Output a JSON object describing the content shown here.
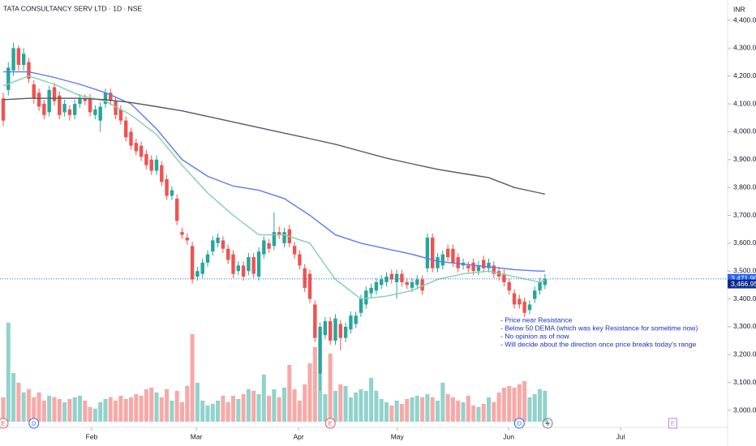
{
  "chart_data": {
    "type": "candlestick",
    "title": "TATA CONSULTANCY SERV LTD · 1D · NSE",
    "currency": "INR",
    "up_color": "#26a69a",
    "down_color": "#ef5350",
    "open": [
      4120,
      4150,
      4220,
      4300,
      4240,
      4250,
      4170,
      4140,
      4100,
      4070,
      4160,
      4130,
      4070,
      4080,
      4060,
      4100,
      4120,
      4120,
      4060,
      4040,
      4100,
      4140,
      4110,
      4080,
      4040,
      4000,
      3960,
      3950,
      3920,
      3900,
      3860,
      3880,
      3830,
      3770,
      3760,
      3640,
      3620,
      3590,
      3480,
      3490,
      3530,
      3570,
      3600,
      3610,
      3580,
      3560,
      3500,
      3520,
      3500,
      3550,
      3480,
      3560,
      3600,
      3590,
      3640,
      3600,
      3650,
      3590,
      3560,
      3510,
      3490,
      3380,
      3130,
      3270,
      3320,
      3250,
      3310,
      3260,
      3290,
      3310,
      3350,
      3380,
      3420,
      3430,
      3450,
      3460,
      3490,
      3460,
      3490,
      3460,
      3440,
      3450,
      3470,
      3510,
      3620,
      3510,
      3520,
      3580,
      3580,
      3550,
      3520,
      3520,
      3530,
      3500,
      3540,
      3510,
      3520,
      3500,
      3490,
      3460,
      3420,
      3400,
      3390,
      3360,
      3400,
      3430,
      3450
    ],
    "high": [
      4140,
      4250,
      4320,
      4310,
      4300,
      4265,
      4185,
      4155,
      4115,
      4165,
      4175,
      4145,
      4115,
      4095,
      4115,
      4135,
      4135,
      4135,
      4095,
      4105,
      4155,
      4155,
      4125,
      4095,
      4055,
      4015,
      3975,
      3965,
      3935,
      3915,
      3915,
      3895,
      3845,
      3805,
      3775,
      3655,
      3635,
      3605,
      3515,
      3545,
      3575,
      3625,
      3635,
      3625,
      3595,
      3575,
      3535,
      3535,
      3565,
      3565,
      3585,
      3625,
      3615,
      3710,
      3660,
      3655,
      3665,
      3605,
      3575,
      3525,
      3505,
      3395,
      3315,
      3335,
      3335,
      3345,
      3325,
      3315,
      3355,
      3355,
      3415,
      3445,
      3455,
      3475,
      3485,
      3495,
      3505,
      3505,
      3505,
      3475,
      3475,
      3485,
      3485,
      3635,
      3635,
      3565,
      3575,
      3595,
      3595,
      3565,
      3545,
      3535,
      3545,
      3535,
      3555,
      3545,
      3535,
      3515,
      3505,
      3475,
      3435,
      3415,
      3405,
      3395,
      3445,
      3475,
      3490
    ],
    "low": [
      4020,
      4130,
      4200,
      4220,
      4220,
      4175,
      4100,
      4075,
      4045,
      4055,
      4095,
      4045,
      4055,
      4040,
      4045,
      4085,
      4095,
      4055,
      4045,
      4000,
      4085,
      4095,
      4045,
      4025,
      3965,
      3935,
      3915,
      3895,
      3865,
      3845,
      3845,
      3805,
      3755,
      3755,
      3665,
      3615,
      3595,
      3455,
      3465,
      3475,
      3515,
      3555,
      3585,
      3565,
      3525,
      3475,
      3485,
      3465,
      3485,
      3475,
      3465,
      3545,
      3565,
      3575,
      3615,
      3585,
      3585,
      3545,
      3505,
      3425,
      3385,
      3245,
      3070,
      3255,
      3235,
      3235,
      3215,
      3245,
      3275,
      3295,
      3335,
      3365,
      3405,
      3415,
      3435,
      3445,
      3455,
      3400,
      3445,
      3435,
      3425,
      3435,
      3415,
      3495,
      3495,
      3495,
      3505,
      3535,
      3515,
      3495,
      3505,
      3495,
      3485,
      3485,
      3495,
      3495,
      3475,
      3465,
      3445,
      3415,
      3365,
      3365,
      3335,
      3345,
      3385,
      3415,
      3435
    ],
    "close": [
      4040,
      4230,
      4300,
      4240,
      4280,
      4190,
      4120,
      4090,
      4060,
      4150,
      4110,
      4060,
      4100,
      4060,
      4100,
      4120,
      4110,
      4070,
      4080,
      4090,
      4140,
      4110,
      4060,
      4040,
      3980,
      3950,
      3930,
      3910,
      3880,
      3860,
      3900,
      3820,
      3770,
      3790,
      3680,
      3630,
      3610,
      3470,
      3500,
      3530,
      3560,
      3610,
      3620,
      3580,
      3540,
      3490,
      3520,
      3480,
      3550,
      3490,
      3570,
      3610,
      3580,
      3640,
      3630,
      3640,
      3600,
      3560,
      3520,
      3440,
      3400,
      3260,
      3300,
      3320,
      3250,
      3330,
      3260,
      3300,
      3340,
      3340,
      3400,
      3430,
      3440,
      3460,
      3470,
      3480,
      3470,
      3490,
      3460,
      3450,
      3460,
      3470,
      3430,
      3620,
      3510,
      3550,
      3560,
      3550,
      3530,
      3510,
      3530,
      3510,
      3500,
      3520,
      3510,
      3530,
      3490,
      3480,
      3460,
      3430,
      3380,
      3380,
      3350,
      3380,
      3430,
      3460,
      3471.9
    ],
    "volume": [
      1.5,
      6.1,
      3.0,
      2.4,
      1.8,
      2.0,
      1.5,
      1.8,
      1.3,
      1.6,
      1.5,
      1.4,
      1.2,
      1.4,
      1.5,
      1.6,
      1.3,
      0.9,
      0.8,
      1.2,
      1.4,
      1.5,
      1.3,
      1.6,
      1.4,
      1.5,
      1.7,
      1.6,
      2.0,
      2.1,
      1.8,
      1.5,
      2.0,
      1.3,
      1.9,
      1.2,
      2.2,
      5.4,
      2.4,
      1.3,
      1.0,
      1.1,
      1.3,
      1.6,
      1.2,
      1.6,
      1.4,
      1.7,
      2.0,
      1.9,
      1.7,
      2.9,
      1.6,
      2.0,
      1.5,
      2.1,
      3.5,
      2.0,
      1.3,
      2.3,
      3.6,
      4.6,
      2.9,
      1.7,
      4.2,
      1.9,
      2.3,
      2.2,
      1.5,
      1.8,
      2.0,
      1.9,
      2.7,
      1.9,
      1.4,
      1.2,
      1.0,
      1.3,
      1.1,
      1.4,
      1.5,
      1.6,
      1.5,
      1.7,
      1.5,
      1.3,
      2.4,
      1.7,
      1.5,
      1.3,
      1.2,
      1.6,
      1.0,
      0.9,
      1.1,
      1.5,
      1.2,
      1.8,
      2.1,
      2.2,
      2.1,
      2.3,
      2.5,
      1.5,
      1.7,
      2.0,
      1.9
    ],
    "lines": [
      {
        "color": "#82cfad",
        "x": [
          0,
          5,
          10,
          15,
          20,
          25,
          30,
          35,
          40,
          45,
          50,
          55,
          60,
          65,
          70,
          75,
          80,
          85,
          90,
          95,
          100,
          105,
          106
        ],
        "values": [
          4165,
          4200,
          4170,
          4130,
          4110,
          4060,
          3990,
          3880,
          3780,
          3700,
          3630,
          3630,
          3600,
          3470,
          3400,
          3410,
          3430,
          3470,
          3490,
          3500,
          3480,
          3460,
          3466.95
        ]
      },
      {
        "color": "#5b7cf0",
        "x": [
          0,
          5,
          10,
          15,
          20,
          25,
          30,
          35,
          40,
          45,
          50,
          55,
          60,
          65,
          70,
          75,
          80,
          85,
          90,
          95,
          100,
          105,
          106
        ],
        "values": [
          4215,
          4215,
          4195,
          4170,
          4140,
          4100,
          4010,
          3900,
          3840,
          3805,
          3790,
          3760,
          3700,
          3630,
          3600,
          3580,
          3560,
          3535,
          3525,
          3515,
          3505,
          3500,
          3500
        ]
      },
      {
        "color": "#555a66",
        "x": [
          0,
          5,
          10,
          15,
          20,
          25,
          30,
          35,
          40,
          45,
          50,
          55,
          60,
          65,
          70,
          75,
          80,
          85,
          90,
          95,
          100,
          105,
          106
        ],
        "values": [
          4115,
          4120,
          4120,
          4120,
          4115,
          4105,
          4090,
          4075,
          4055,
          4035,
          4015,
          3995,
          3975,
          3955,
          3930,
          3905,
          3885,
          3865,
          3850,
          3835,
          3800,
          3780,
          3776
        ]
      }
    ],
    "xlim": [
      -0.63,
      140.63
    ],
    "xticks": [
      {
        "value": 17.3,
        "label": "Feb"
      },
      {
        "value": 37.8,
        "label": "Mar"
      },
      {
        "value": 57.8,
        "label": "Apr"
      },
      {
        "value": 77.1,
        "label": "May"
      },
      {
        "value": 98.9,
        "label": "Jun"
      },
      {
        "value": 120.8,
        "label": "Jul"
      }
    ],
    "ylim": [
      2959.4,
      4472.8
    ],
    "yticks": [
      {
        "value": 3000,
        "label": "3,000.00"
      },
      {
        "value": 3100,
        "label": "3,100.00"
      },
      {
        "value": 3200,
        "label": "3,200.00"
      },
      {
        "value": 3300,
        "label": "3,300.00"
      },
      {
        "value": 3400,
        "label": "3,400.00"
      },
      {
        "value": 3500,
        "label": "3,500.00"
      },
      {
        "value": 3600,
        "label": "3,600.00"
      },
      {
        "value": 3700,
        "label": "3,700.00"
      },
      {
        "value": 3800,
        "label": "3,800.00"
      },
      {
        "value": 3900,
        "label": "3,900.00"
      },
      {
        "value": 4000,
        "label": "4,000.00"
      },
      {
        "value": 4100,
        "label": "4,100.00"
      },
      {
        "value": 4200,
        "label": "4,200.00"
      },
      {
        "value": 4300,
        "label": "4,300.00"
      },
      {
        "value": 4400,
        "label": "4,400.00"
      }
    ],
    "last_price": {
      "value": 3471.9,
      "label": "3,471.90"
    },
    "line_price": {
      "value": 3466.95,
      "label": "3,466.95"
    },
    "events": [
      {
        "index": 0,
        "label": "E"
      },
      {
        "index": 6,
        "label": "D"
      },
      {
        "index": 64,
        "label": "E"
      },
      {
        "index": 101,
        "label": "D"
      },
      {
        "index": 131,
        "label": "E"
      }
    ],
    "annotation": [
      "- Price near Resistance",
      "- Below 50 DEMA (which was key Resistance for sometime now)",
      "- No opinion as of now",
      "- Will decide about the direction once price breaks today's range"
    ]
  }
}
